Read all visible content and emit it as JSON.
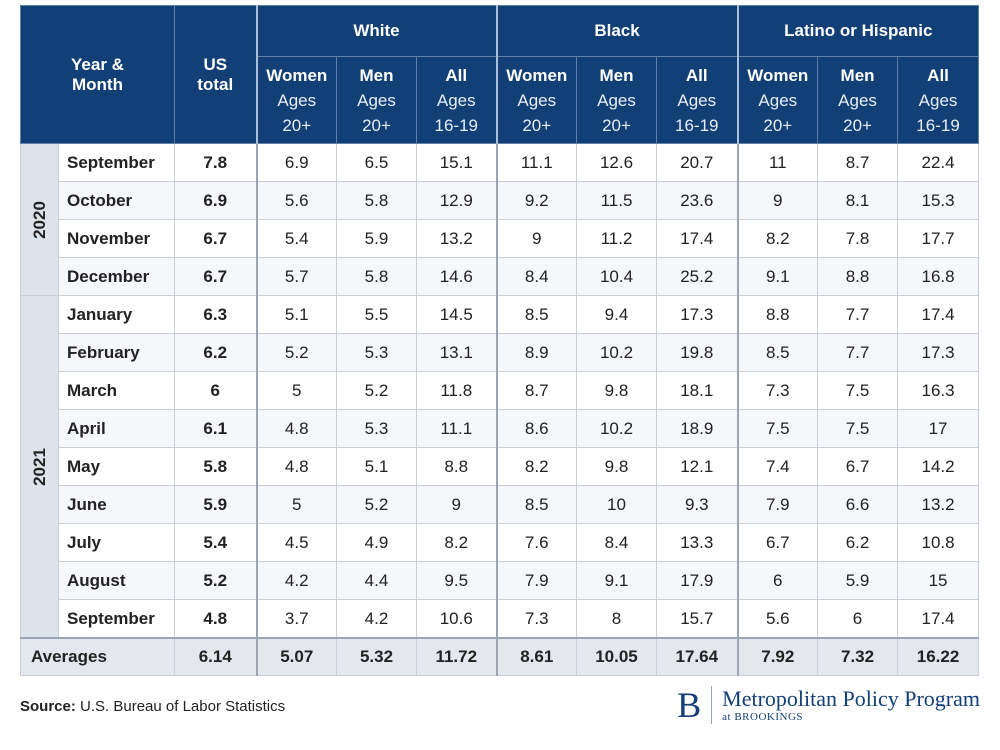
{
  "chart_data": {
    "type": "table",
    "header": {
      "year_month": [
        "Year &",
        "Month"
      ],
      "us_total": [
        "US",
        "total"
      ],
      "groups": [
        "White",
        "Black",
        "Latino or Hispanic"
      ],
      "subcols": [
        {
          "label": "Women",
          "ages": [
            "Ages",
            "20+"
          ]
        },
        {
          "label": "Men",
          "ages": [
            "Ages",
            "20+"
          ]
        },
        {
          "label": "All",
          "ages": [
            "Ages",
            "16-19"
          ]
        }
      ]
    },
    "years": [
      {
        "year": "2020",
        "rows": [
          {
            "month": "September",
            "total": "7.8",
            "values": [
              "6.9",
              "6.5",
              "15.1",
              "11.1",
              "12.6",
              "20.7",
              "11",
              "8.7",
              "22.4"
            ]
          },
          {
            "month": "October",
            "total": "6.9",
            "values": [
              "5.6",
              "5.8",
              "12.9",
              "9.2",
              "11.5",
              "23.6",
              "9",
              "8.1",
              "15.3"
            ]
          },
          {
            "month": "November",
            "total": "6.7",
            "values": [
              "5.4",
              "5.9",
              "13.2",
              "9",
              "11.2",
              "17.4",
              "8.2",
              "7.8",
              "17.7"
            ]
          },
          {
            "month": "December",
            "total": "6.7",
            "values": [
              "5.7",
              "5.8",
              "14.6",
              "8.4",
              "10.4",
              "25.2",
              "9.1",
              "8.8",
              "16.8"
            ]
          }
        ]
      },
      {
        "year": "2021",
        "rows": [
          {
            "month": "January",
            "total": "6.3",
            "values": [
              "5.1",
              "5.5",
              "14.5",
              "8.5",
              "9.4",
              "17.3",
              "8.8",
              "7.7",
              "17.4"
            ]
          },
          {
            "month": "February",
            "total": "6.2",
            "values": [
              "5.2",
              "5.3",
              "13.1",
              "8.9",
              "10.2",
              "19.8",
              "8.5",
              "7.7",
              "17.3"
            ]
          },
          {
            "month": "March",
            "total": "6",
            "values": [
              "5",
              "5.2",
              "11.8",
              "8.7",
              "9.8",
              "18.1",
              "7.3",
              "7.5",
              "16.3"
            ]
          },
          {
            "month": "April",
            "total": "6.1",
            "values": [
              "4.8",
              "5.3",
              "11.1",
              "8.6",
              "10.2",
              "18.9",
              "7.5",
              "7.5",
              "17"
            ]
          },
          {
            "month": "May",
            "total": "5.8",
            "values": [
              "4.8",
              "5.1",
              "8.8",
              "8.2",
              "9.8",
              "12.1",
              "7.4",
              "6.7",
              "14.2"
            ]
          },
          {
            "month": "June",
            "total": "5.9",
            "values": [
              "5",
              "5.2",
              "9",
              "8.5",
              "10",
              "9.3",
              "7.9",
              "6.6",
              "13.2"
            ]
          },
          {
            "month": "July",
            "total": "5.4",
            "values": [
              "4.5",
              "4.9",
              "8.2",
              "7.6",
              "8.4",
              "13.3",
              "6.7",
              "6.2",
              "10.8"
            ]
          },
          {
            "month": "August",
            "total": "5.2",
            "values": [
              "4.2",
              "4.4",
              "9.5",
              "7.9",
              "9.1",
              "17.9",
              "6",
              "5.9",
              "15"
            ]
          },
          {
            "month": "September",
            "total": "4.8",
            "values": [
              "3.7",
              "4.2",
              "10.6",
              "7.3",
              "8",
              "15.7",
              "5.6",
              "6",
              "17.4"
            ]
          }
        ]
      }
    ],
    "averages": {
      "label": "Averages",
      "total": "6.14",
      "values": [
        "5.07",
        "5.32",
        "11.72",
        "8.61",
        "10.05",
        "17.64",
        "7.92",
        "7.32",
        "16.22"
      ]
    }
  },
  "footer": {
    "source_label": "Source:",
    "source_text": "U.S. Bureau of Labor Statistics"
  },
  "brand": {
    "letter": "B",
    "name": "Metropolitan Policy Program",
    "sub": "at BROOKINGS"
  },
  "colors": {
    "header_bg": "#123f76",
    "year_bg": "#dde3eb",
    "avg_bg": "#e4e8ee"
  }
}
